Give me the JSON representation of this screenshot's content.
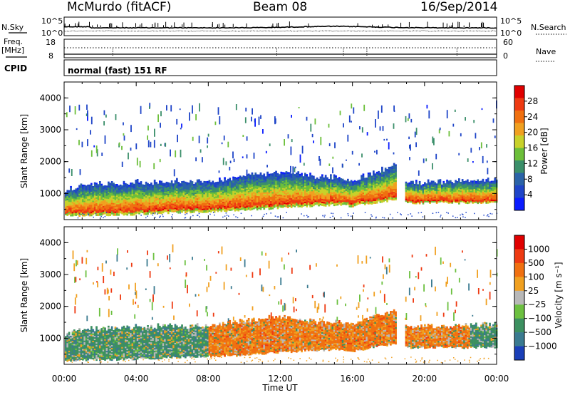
{
  "header": {
    "station": "McMurdo (fitACF)",
    "beam": "Beam 08",
    "date": "16/Sep/2014"
  },
  "top_panel": {
    "nsky_label": "N.Sky",
    "nsearch_label": "N.Search",
    "freq_label": "Freq.",
    "freq_unit": "[MHz]",
    "nave_label": "Nave",
    "cpid_label": "CPID",
    "cpid_value": "normal (fast) 151 RF",
    "noise_ticks_left": [
      "10^5",
      "10^0"
    ],
    "noise_ticks_right": [
      "10^5",
      "10^0"
    ],
    "freq_ticks": [
      "18",
      "8"
    ],
    "nave_ticks": [
      "60",
      "0"
    ]
  },
  "chart_data": [
    {
      "type": "heatmap",
      "name": "power",
      "xlabel": "",
      "ylabel": "Slant Range [km]",
      "xlim": [
        0,
        24
      ],
      "ylim": [
        180,
        4500
      ],
      "yticks": [
        "1000",
        "2000",
        "3000",
        "4000"
      ],
      "colorbar": {
        "label": "Power [dB]",
        "ticks": [
          "4",
          "8",
          "12",
          "16",
          "20",
          "24",
          "28"
        ],
        "range": [
          0,
          32
        ],
        "colors": [
          "#0a1cff",
          "#1f45c8",
          "#2b63a8",
          "#3b8f6a",
          "#6cbf3a",
          "#c8d12a",
          "#f0a020",
          "#f07010",
          "#ee3a12",
          "#e00000"
        ]
      },
      "band": {
        "description_points_hours": [
          0,
          1,
          2,
          3,
          4,
          5,
          6,
          7,
          8,
          9,
          10,
          11,
          12,
          13,
          14,
          15,
          16,
          17,
          18.3,
          19,
          20,
          21,
          22,
          23,
          24
        ],
        "lower_km": [
          300,
          320,
          330,
          340,
          350,
          380,
          400,
          420,
          430,
          450,
          470,
          520,
          560,
          600,
          620,
          650,
          600,
          700,
          800,
          700,
          700,
          720,
          700,
          720,
          700
        ],
        "upper_km": [
          1100,
          1250,
          1300,
          1300,
          1350,
          1350,
          1380,
          1350,
          1380,
          1450,
          1550,
          1600,
          1650,
          1600,
          1500,
          1500,
          1400,
          1600,
          1900,
          1300,
          1350,
          1350,
          1400,
          1400,
          1400
        ]
      },
      "data_gap_hours": [
        18.4,
        18.9
      ]
    },
    {
      "type": "heatmap",
      "name": "velocity",
      "xlabel": "Time UT",
      "ylabel": "Slant Range [km]",
      "xlim": [
        0,
        24
      ],
      "ylim": [
        180,
        4500
      ],
      "xticks": [
        "00:00",
        "04:00",
        "08:00",
        "12:00",
        "16:00",
        "20:00",
        "00:00"
      ],
      "yticks": [
        "1000",
        "2000",
        "3000",
        "4000"
      ],
      "colorbar": {
        "label": "Velocity [m s⁻¹]",
        "ticks": [
          "1000",
          "500",
          "100",
          "25",
          "−25",
          "−100",
          "−500",
          "−1000"
        ],
        "colors": [
          "#1a3fb8",
          "#3a7a90",
          "#3c9060",
          "#6cc040",
          "#b8b8b8",
          "#f0a020",
          "#f07010",
          "#ee3a12",
          "#e00000"
        ]
      },
      "segments": [
        {
          "from": 0,
          "to": 8,
          "dominant": "#3c9060"
        },
        {
          "from": 8,
          "to": 18.4,
          "dominant": "#f08a20"
        },
        {
          "from": 18.9,
          "to": 22.5,
          "dominant": "#f08a20"
        },
        {
          "from": 22.5,
          "to": 24,
          "dominant": "#3c9060"
        }
      ]
    }
  ]
}
